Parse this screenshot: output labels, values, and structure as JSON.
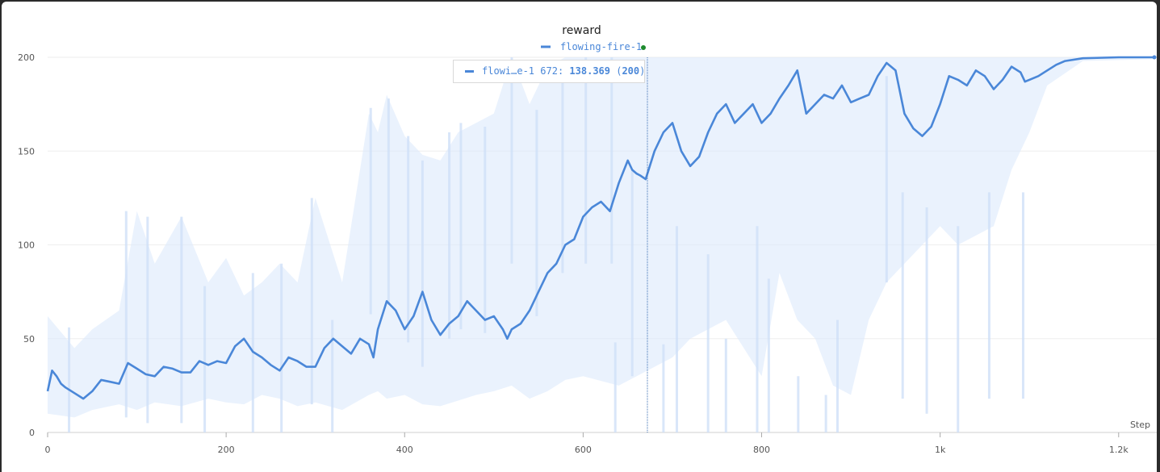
{
  "chart_data": {
    "type": "line",
    "title": "reward",
    "xlabel": "Step",
    "ylabel": "",
    "xlim": [
      0,
      1240
    ],
    "ylim": [
      0,
      200
    ],
    "x_ticks": [
      {
        "v": 0,
        "label": "0"
      },
      {
        "v": 200,
        "label": "200"
      },
      {
        "v": 400,
        "label": "400"
      },
      {
        "v": 600,
        "label": "600"
      },
      {
        "v": 800,
        "label": "800"
      },
      {
        "v": 1000,
        "label": "1k"
      },
      {
        "v": 1200,
        "label": "1.2k"
      }
    ],
    "y_ticks": [
      {
        "v": 0,
        "label": "0"
      },
      {
        "v": 50,
        "label": "50"
      },
      {
        "v": 100,
        "label": "100"
      },
      {
        "v": 150,
        "label": "150"
      },
      {
        "v": 200,
        "label": "200"
      }
    ],
    "grid": true,
    "legend_position": "top-center",
    "series": [
      {
        "name": "flowing-fire-1",
        "color": "#4a87d8",
        "raw_color": "#dce9fb",
        "smoothed": [
          [
            0,
            22
          ],
          [
            5,
            33
          ],
          [
            10,
            30
          ],
          [
            15,
            26
          ],
          [
            20,
            24
          ],
          [
            30,
            21
          ],
          [
            40,
            18
          ],
          [
            50,
            22
          ],
          [
            60,
            28
          ],
          [
            70,
            27
          ],
          [
            80,
            26
          ],
          [
            90,
            37
          ],
          [
            100,
            34
          ],
          [
            110,
            31
          ],
          [
            120,
            30
          ],
          [
            130,
            35
          ],
          [
            140,
            34
          ],
          [
            150,
            32
          ],
          [
            160,
            32
          ],
          [
            170,
            38
          ],
          [
            180,
            36
          ],
          [
            190,
            38
          ],
          [
            200,
            37
          ],
          [
            210,
            46
          ],
          [
            220,
            50
          ],
          [
            230,
            43
          ],
          [
            240,
            40
          ],
          [
            250,
            36
          ],
          [
            260,
            33
          ],
          [
            270,
            40
          ],
          [
            280,
            38
          ],
          [
            290,
            35
          ],
          [
            300,
            35
          ],
          [
            310,
            45
          ],
          [
            320,
            50
          ],
          [
            330,
            46
          ],
          [
            340,
            42
          ],
          [
            350,
            50
          ],
          [
            360,
            47
          ],
          [
            365,
            40
          ],
          [
            370,
            55
          ],
          [
            380,
            70
          ],
          [
            390,
            65
          ],
          [
            395,
            60
          ],
          [
            400,
            55
          ],
          [
            410,
            62
          ],
          [
            420,
            75
          ],
          [
            430,
            60
          ],
          [
            440,
            52
          ],
          [
            450,
            58
          ],
          [
            460,
            62
          ],
          [
            470,
            70
          ],
          [
            480,
            65
          ],
          [
            490,
            60
          ],
          [
            500,
            62
          ],
          [
            510,
            55
          ],
          [
            515,
            50
          ],
          [
            520,
            55
          ],
          [
            530,
            58
          ],
          [
            540,
            65
          ],
          [
            550,
            75
          ],
          [
            560,
            85
          ],
          [
            570,
            90
          ],
          [
            580,
            100
          ],
          [
            590,
            103
          ],
          [
            600,
            115
          ],
          [
            610,
            120
          ],
          [
            620,
            123
          ],
          [
            630,
            118
          ],
          [
            640,
            133
          ],
          [
            650,
            145
          ],
          [
            655,
            140
          ],
          [
            660,
            138
          ],
          [
            664,
            137
          ],
          [
            670,
            135
          ],
          [
            672,
            138
          ],
          [
            680,
            150
          ],
          [
            690,
            160
          ],
          [
            700,
            165
          ],
          [
            710,
            150
          ],
          [
            720,
            142
          ],
          [
            730,
            147
          ],
          [
            740,
            160
          ],
          [
            750,
            170
          ],
          [
            760,
            175
          ],
          [
            770,
            165
          ],
          [
            780,
            170
          ],
          [
            790,
            175
          ],
          [
            800,
            165
          ],
          [
            810,
            170
          ],
          [
            820,
            178
          ],
          [
            830,
            185
          ],
          [
            840,
            193
          ],
          [
            850,
            170
          ],
          [
            860,
            175
          ],
          [
            870,
            180
          ],
          [
            880,
            178
          ],
          [
            890,
            185
          ],
          [
            900,
            176
          ],
          [
            910,
            178
          ],
          [
            920,
            180
          ],
          [
            930,
            190
          ],
          [
            940,
            197
          ],
          [
            950,
            193
          ],
          [
            960,
            170
          ],
          [
            970,
            162
          ],
          [
            980,
            158
          ],
          [
            990,
            163
          ],
          [
            1000,
            175
          ],
          [
            1010,
            190
          ],
          [
            1020,
            188
          ],
          [
            1030,
            185
          ],
          [
            1040,
            193
          ],
          [
            1050,
            190
          ],
          [
            1060,
            183
          ],
          [
            1070,
            188
          ],
          [
            1080,
            195
          ],
          [
            1090,
            192
          ],
          [
            1095,
            187
          ],
          [
            1100,
            188
          ],
          [
            1110,
            190
          ],
          [
            1120,
            193
          ],
          [
            1130,
            196
          ],
          [
            1140,
            198
          ],
          [
            1160,
            199.5
          ],
          [
            1200,
            200
          ],
          [
            1240,
            200
          ]
        ],
        "raw_max": [
          [
            0,
            62
          ],
          [
            30,
            45
          ],
          [
            50,
            55
          ],
          [
            80,
            65
          ],
          [
            100,
            118
          ],
          [
            120,
            90
          ],
          [
            150,
            115
          ],
          [
            180,
            80
          ],
          [
            200,
            93
          ],
          [
            220,
            73
          ],
          [
            240,
            80
          ],
          [
            260,
            90
          ],
          [
            280,
            80
          ],
          [
            300,
            125
          ],
          [
            330,
            80
          ],
          [
            360,
            170
          ],
          [
            370,
            160
          ],
          [
            380,
            180
          ],
          [
            400,
            158
          ],
          [
            420,
            148
          ],
          [
            440,
            145
          ],
          [
            460,
            160
          ],
          [
            480,
            165
          ],
          [
            500,
            170
          ],
          [
            520,
            200
          ],
          [
            540,
            175
          ],
          [
            560,
            195
          ],
          [
            580,
            200
          ],
          [
            600,
            200
          ],
          [
            640,
            200
          ],
          [
            700,
            200
          ],
          [
            760,
            200
          ],
          [
            800,
            200
          ],
          [
            860,
            200
          ],
          [
            920,
            200
          ],
          [
            960,
            200
          ],
          [
            1000,
            200
          ],
          [
            1060,
            200
          ],
          [
            1100,
            200
          ],
          [
            1160,
            200
          ],
          [
            1240,
            200
          ]
        ],
        "raw_min": [
          [
            0,
            10
          ],
          [
            30,
            8
          ],
          [
            50,
            12
          ],
          [
            80,
            15
          ],
          [
            100,
            12
          ],
          [
            120,
            16
          ],
          [
            150,
            14
          ],
          [
            180,
            18
          ],
          [
            200,
            16
          ],
          [
            220,
            15
          ],
          [
            240,
            20
          ],
          [
            260,
            18
          ],
          [
            280,
            14
          ],
          [
            300,
            16
          ],
          [
            330,
            12
          ],
          [
            360,
            20
          ],
          [
            370,
            22
          ],
          [
            380,
            18
          ],
          [
            400,
            20
          ],
          [
            420,
            15
          ],
          [
            440,
            14
          ],
          [
            460,
            17
          ],
          [
            480,
            20
          ],
          [
            500,
            22
          ],
          [
            520,
            25
          ],
          [
            540,
            18
          ],
          [
            560,
            22
          ],
          [
            580,
            28
          ],
          [
            600,
            30
          ],
          [
            640,
            25
          ],
          [
            700,
            40
          ],
          [
            720,
            50
          ],
          [
            760,
            60
          ],
          [
            800,
            30
          ],
          [
            820,
            85
          ],
          [
            840,
            60
          ],
          [
            860,
            50
          ],
          [
            880,
            25
          ],
          [
            900,
            20
          ],
          [
            920,
            60
          ],
          [
            940,
            80
          ],
          [
            960,
            90
          ],
          [
            1000,
            110
          ],
          [
            1020,
            100
          ],
          [
            1060,
            110
          ],
          [
            1080,
            140
          ],
          [
            1100,
            160
          ],
          [
            1120,
            185
          ],
          [
            1160,
            198
          ],
          [
            1240,
            199
          ]
        ],
        "raw_spikes": [
          [
            24,
            56
          ],
          [
            88,
            118
          ],
          [
            112,
            115
          ],
          [
            150,
            115
          ],
          [
            176,
            78
          ],
          [
            230,
            85
          ],
          [
            262,
            90
          ],
          [
            296,
            125
          ],
          [
            319,
            60
          ],
          [
            362,
            173
          ],
          [
            382,
            178
          ],
          [
            404,
            158
          ],
          [
            420,
            145
          ],
          [
            450,
            160
          ],
          [
            463,
            165
          ],
          [
            490,
            163
          ],
          [
            520,
            200
          ],
          [
            548,
            172
          ],
          [
            577,
            195
          ],
          [
            603,
            200
          ],
          [
            632,
            200
          ],
          [
            636,
            48
          ],
          [
            655,
            140
          ],
          [
            690,
            47
          ],
          [
            705,
            110
          ],
          [
            740,
            95
          ],
          [
            760,
            50
          ],
          [
            795,
            110
          ],
          [
            808,
            82
          ],
          [
            841,
            30
          ],
          [
            872,
            20
          ],
          [
            885,
            60
          ],
          [
            940,
            190
          ],
          [
            958,
            128
          ],
          [
            985,
            120
          ],
          [
            1020,
            110
          ],
          [
            1055,
            128
          ],
          [
            1093,
            128
          ]
        ]
      }
    ],
    "legend": {
      "label": "flowing-fire-1"
    },
    "tooltip": {
      "name": "flowi…e-1",
      "step": 672,
      "value": "138.369",
      "raw": "200",
      "sep": ":"
    },
    "hover_x": 672
  }
}
